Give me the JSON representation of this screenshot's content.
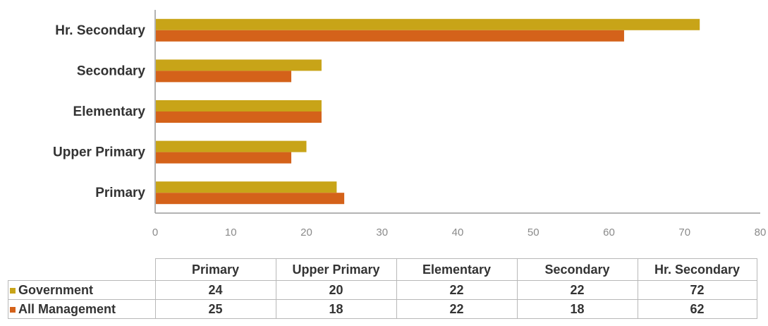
{
  "chart_data": {
    "type": "bar",
    "orientation": "horizontal",
    "title": "",
    "categories": [
      "Primary",
      "Upper Primary",
      "Elementary",
      "Secondary",
      "Hr. Secondary"
    ],
    "series": [
      {
        "name": "Government",
        "values": [
          24,
          20,
          22,
          22,
          72
        ],
        "color": "#c8a418"
      },
      {
        "name": "All Management",
        "values": [
          25,
          18,
          22,
          18,
          62
        ],
        "color": "#d4621a"
      }
    ],
    "xlim": [
      0,
      80
    ],
    "xticks": [
      0,
      10,
      20,
      30,
      40,
      50,
      60,
      70,
      80
    ],
    "grid": false,
    "legend": "data-table-below"
  }
}
